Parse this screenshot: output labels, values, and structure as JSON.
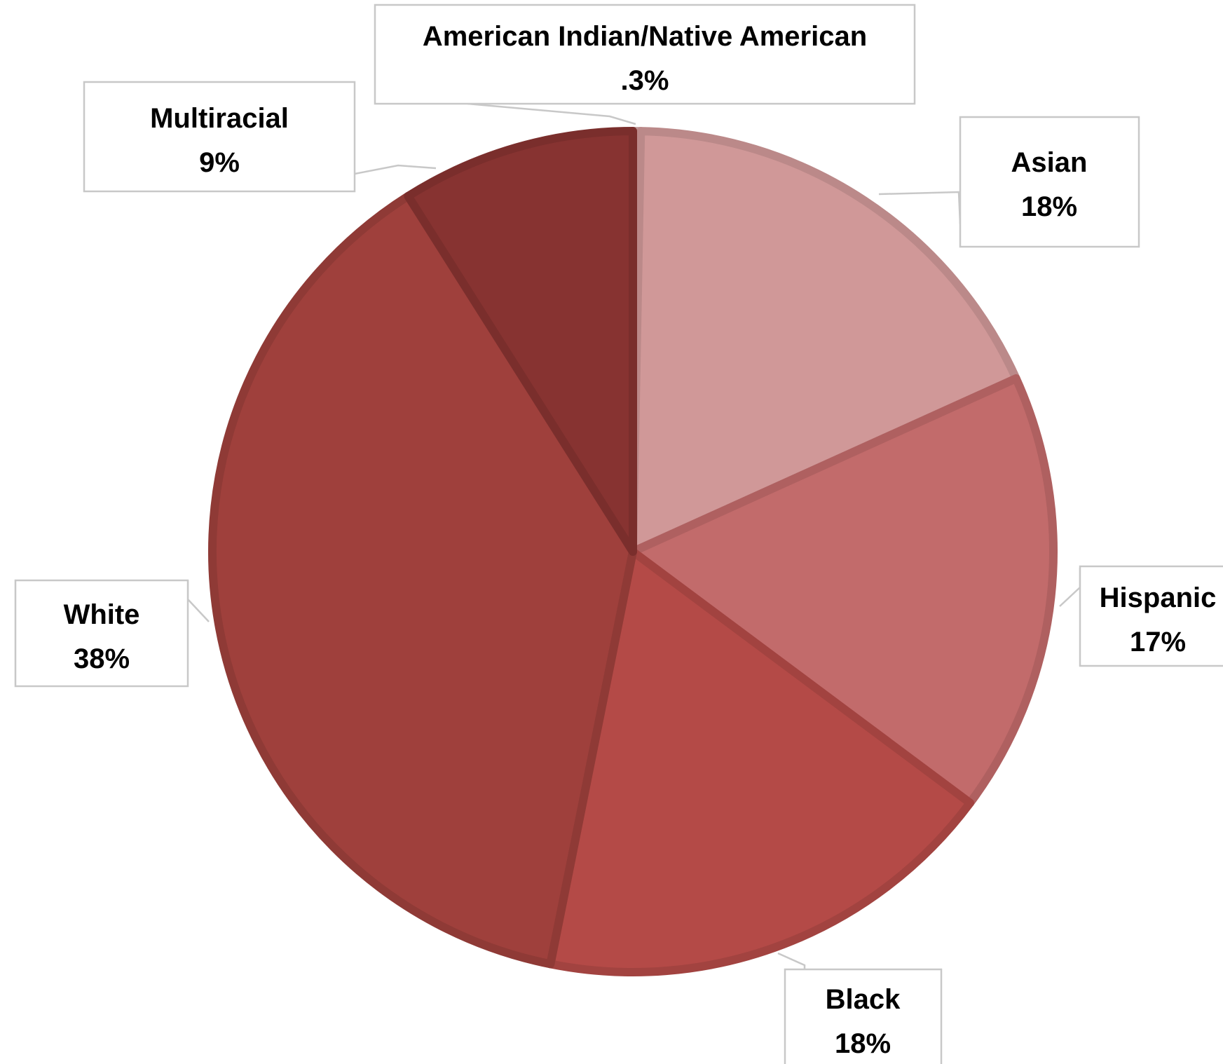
{
  "chart_data": {
    "type": "pie",
    "title": "",
    "start_angle_deg": 0,
    "direction": "clockwise",
    "slices": [
      {
        "label": "American Indian/Native American",
        "value": 0.3,
        "value_label": ".3%",
        "color": "#D7B0B0"
      },
      {
        "label": "Asian",
        "value": 18,
        "value_label": "18%",
        "color": "#D09898"
      },
      {
        "label": "Hispanic",
        "value": 17,
        "value_label": "17%",
        "color": "#C26B6B"
      },
      {
        "label": "Black",
        "value": 18,
        "value_label": "18%",
        "color": "#B44A47"
      },
      {
        "label": "White",
        "value": 38,
        "value_label": "38%",
        "color": "#9F403C"
      },
      {
        "label": "Multiracial",
        "value": 9,
        "value_label": "9%",
        "color": "#873331"
      }
    ],
    "legend": "none",
    "data_labels": "callouts"
  }
}
